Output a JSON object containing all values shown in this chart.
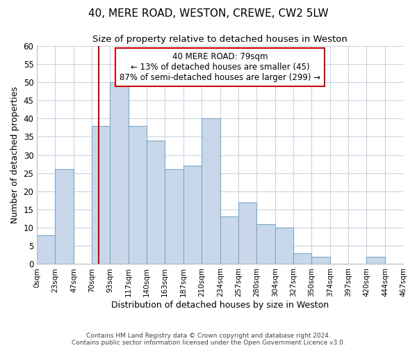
{
  "title": "40, MERE ROAD, WESTON, CREWE, CW2 5LW",
  "subtitle": "Size of property relative to detached houses in Weston",
  "xlabel": "Distribution of detached houses by size in Weston",
  "ylabel": "Number of detached properties",
  "footer_line1": "Contains HM Land Registry data © Crown copyright and database right 2024.",
  "footer_line2": "Contains public sector information licensed under the Open Government Licence v3.0.",
  "bar_edges": [
    0,
    23,
    47,
    70,
    93,
    117,
    140,
    163,
    187,
    210,
    234,
    257,
    280,
    304,
    327,
    350,
    374,
    397,
    420,
    444,
    467
  ],
  "bar_heights": [
    8,
    26,
    0,
    38,
    50,
    38,
    34,
    26,
    27,
    40,
    13,
    17,
    11,
    10,
    3,
    2,
    0,
    0,
    2,
    0
  ],
  "bar_color": "#c8d8ea",
  "bar_edgecolor": "#7ba7c8",
  "tick_labels": [
    "0sqm",
    "23sqm",
    "47sqm",
    "70sqm",
    "93sqm",
    "117sqm",
    "140sqm",
    "163sqm",
    "187sqm",
    "210sqm",
    "234sqm",
    "257sqm",
    "280sqm",
    "304sqm",
    "327sqm",
    "350sqm",
    "374sqm",
    "397sqm",
    "420sqm",
    "444sqm",
    "467sqm"
  ],
  "property_line_x": 79,
  "property_line_color": "#cc0000",
  "annotation_title": "40 MERE ROAD: 79sqm",
  "annotation_line1": "← 13% of detached houses are smaller (45)",
  "annotation_line2": "87% of semi-detached houses are larger (299) →",
  "ylim": [
    0,
    60
  ],
  "yticks": [
    0,
    5,
    10,
    15,
    20,
    25,
    30,
    35,
    40,
    45,
    50,
    55,
    60
  ],
  "background_color": "#ffffff",
  "grid_color": "#c8d4e0"
}
